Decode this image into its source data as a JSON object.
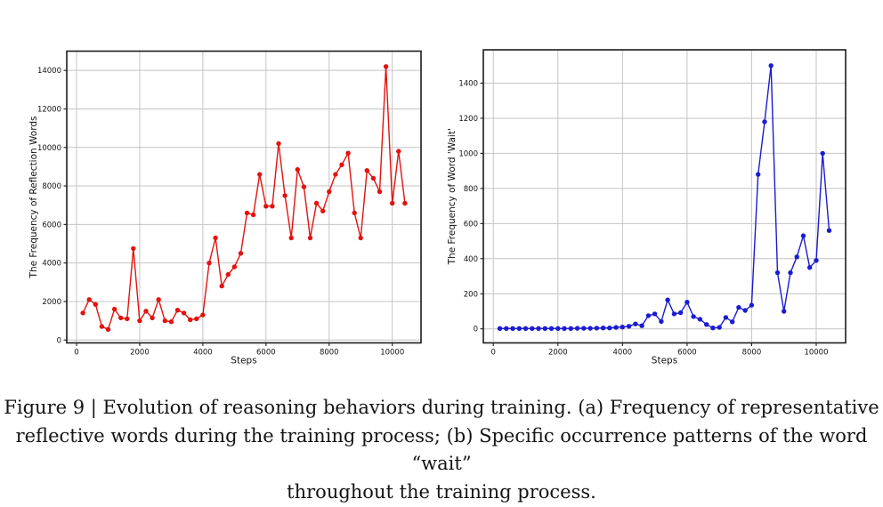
{
  "caption": {
    "line1": "Figure 9 | Evolution of reasoning behaviors during training. (a) Frequency of representative",
    "line2": "reflective words during the training process; (b) Specific occurrence patterns of the word “wait”",
    "line3": "throughout the training process."
  },
  "colors": {
    "red_series": "#e3120e",
    "blue_series": "#1b1bd1",
    "grid": "#c4c4c4",
    "spine": "#1c1c1c",
    "text": "#111111",
    "background": "#ffffff"
  },
  "chart_data": [
    {
      "id": "reflection-words",
      "type": "line",
      "title": "",
      "xlabel": "Steps",
      "ylabel": "The Frequency of Reflection Words",
      "legend": null,
      "grid": true,
      "marker": "circle",
      "line_color": "#e3120e",
      "xlim": [
        -310,
        10910
      ],
      "ylim": [
        -150,
        15000
      ],
      "x_ticks": [
        0,
        2000,
        4000,
        6000,
        8000,
        10000
      ],
      "y_ticks": [
        0,
        2000,
        4000,
        6000,
        8000,
        10000,
        12000,
        14000
      ],
      "x": [
        200,
        400,
        600,
        800,
        1000,
        1200,
        1400,
        1600,
        1800,
        2000,
        2200,
        2400,
        2600,
        2800,
        3000,
        3200,
        3400,
        3600,
        3800,
        4000,
        4200,
        4400,
        4600,
        4800,
        5000,
        5200,
        5400,
        5600,
        5800,
        6000,
        6200,
        6400,
        6600,
        6800,
        7000,
        7200,
        7400,
        7600,
        7800,
        8000,
        8200,
        8400,
        8600,
        8800,
        9000,
        9200,
        9400,
        9600,
        9800,
        10000,
        10200,
        10400
      ],
      "values": [
        1400,
        2100,
        1850,
        700,
        550,
        1600,
        1150,
        1100,
        4750,
        1000,
        1500,
        1150,
        2100,
        1000,
        950,
        1550,
        1400,
        1050,
        1100,
        1300,
        4000,
        5300,
        2800,
        3400,
        3800,
        4500,
        6600,
        6500,
        8600,
        6950,
        6950,
        10200,
        7500,
        5300,
        8850,
        7950,
        5300,
        7100,
        6700,
        7700,
        8600,
        9100,
        9700,
        6600,
        5300,
        8800,
        8400,
        7700,
        14200,
        7100,
        9800,
        7100
      ]
    },
    {
      "id": "word-wait",
      "type": "line",
      "title": "",
      "xlabel": "Steps",
      "ylabel": "The Frequency of Word 'Wait'",
      "legend": null,
      "grid": true,
      "marker": "circle",
      "line_color": "#1b1bd1",
      "xlim": [
        -310,
        10910
      ],
      "ylim": [
        -80,
        1590
      ],
      "x_ticks": [
        0,
        2000,
        4000,
        6000,
        8000,
        10000
      ],
      "y_ticks": [
        0,
        200,
        400,
        600,
        800,
        1000,
        1200,
        1400
      ],
      "x": [
        200,
        400,
        600,
        800,
        1000,
        1200,
        1400,
        1600,
        1800,
        2000,
        2200,
        2400,
        2600,
        2800,
        3000,
        3200,
        3400,
        3600,
        3800,
        4000,
        4200,
        4400,
        4600,
        4800,
        5000,
        5200,
        5400,
        5600,
        5800,
        6000,
        6200,
        6400,
        6600,
        6800,
        7000,
        7200,
        7400,
        7600,
        7800,
        8000,
        8200,
        8400,
        8600,
        8800,
        9000,
        9200,
        9400,
        9600,
        9800,
        10000,
        10200,
        10400
      ],
      "values": [
        2,
        2,
        2,
        2,
        2,
        2,
        2,
        2,
        2,
        2,
        2,
        2,
        3,
        3,
        3,
        4,
        5,
        5,
        8,
        10,
        15,
        28,
        18,
        75,
        85,
        42,
        165,
        85,
        92,
        152,
        70,
        55,
        25,
        5,
        8,
        65,
        40,
        122,
        105,
        135,
        880,
        1180,
        1500,
        320,
        100,
        320,
        410,
        530,
        350,
        390,
        1000,
        560
      ]
    }
  ]
}
